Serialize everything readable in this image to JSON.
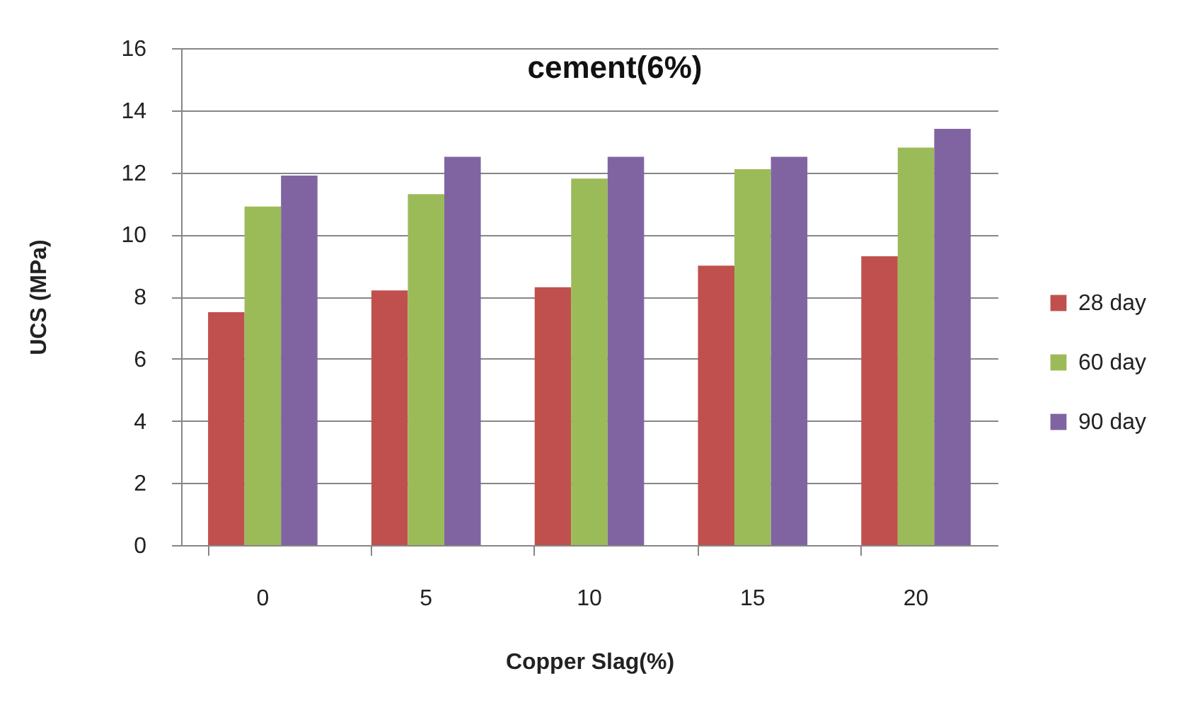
{
  "chart_data": {
    "type": "bar",
    "title": "cement(6%)",
    "xlabel": "Copper Slag(%)",
    "ylabel": "UCS (MPa)",
    "categories": [
      "0",
      "5",
      "10",
      "15",
      "20"
    ],
    "series": [
      {
        "name": "28 day",
        "color": "#c0504d",
        "values": [
          7.5,
          8.2,
          8.3,
          9.0,
          9.3
        ]
      },
      {
        "name": "60 day",
        "color": "#9bbb59",
        "values": [
          10.9,
          11.3,
          11.8,
          12.1,
          12.8
        ]
      },
      {
        "name": "90 day",
        "color": "#8064a2",
        "values": [
          11.9,
          12.5,
          12.5,
          12.5,
          13.4
        ]
      }
    ],
    "ylim": [
      0,
      16
    ],
    "yticks": [
      0,
      2,
      4,
      6,
      8,
      10,
      12,
      14,
      16
    ],
    "grid": "y",
    "legend": "right"
  }
}
